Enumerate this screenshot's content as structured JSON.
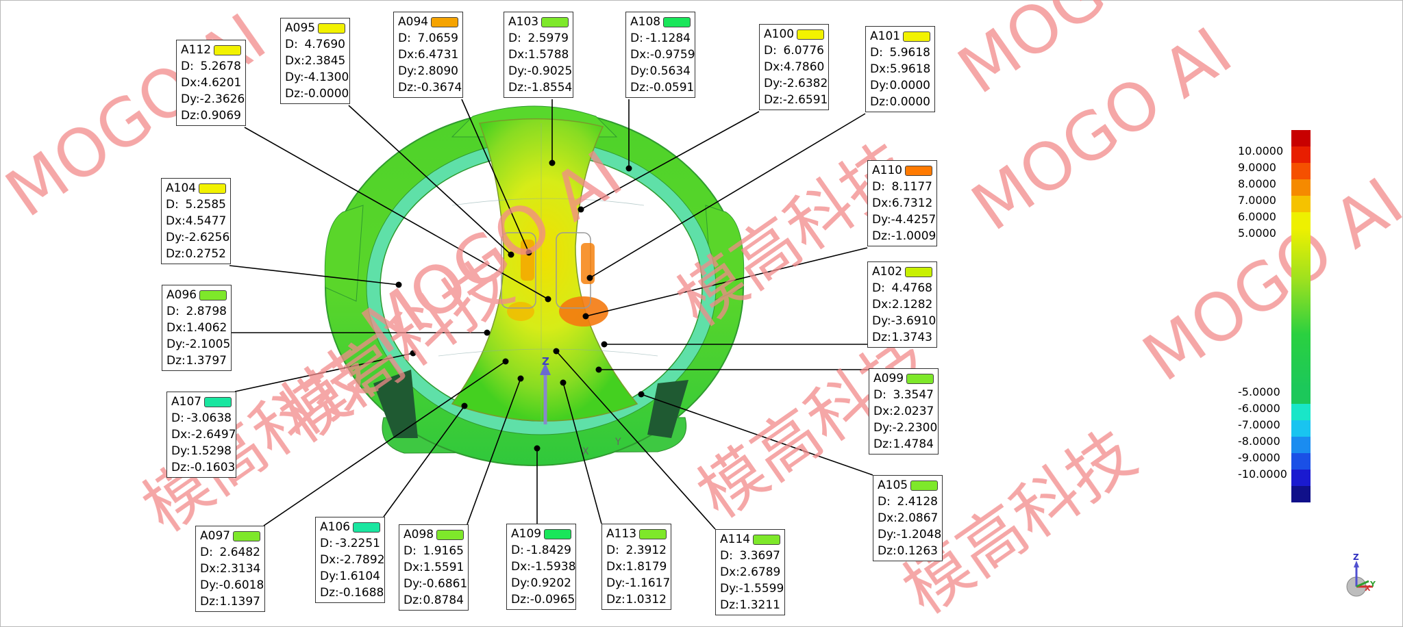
{
  "callouts": [
    {
      "id": "A112",
      "color": "#f2f200",
      "D": "5.2678",
      "Dx": "4.6201",
      "Dy": "-2.3626",
      "Dz": "0.9069"
    },
    {
      "id": "A095",
      "color": "#f2f200",
      "D": "4.7690",
      "Dx": "2.3845",
      "Dy": "-4.1300",
      "Dz": "-0.0000"
    },
    {
      "id": "A094",
      "color": "#f5a300",
      "D": "7.0659",
      "Dx": "6.4731",
      "Dy": "2.8090",
      "Dz": "-0.3674"
    },
    {
      "id": "A103",
      "color": "#7ee82a",
      "D": "2.5979",
      "Dx": "1.5788",
      "Dy": "-0.9025",
      "Dz": "-1.8554"
    },
    {
      "id": "A108",
      "color": "#19e65a",
      "D": "-1.1284",
      "Dx": "-0.9759",
      "Dy": "0.5634",
      "Dz": "-0.0591"
    },
    {
      "id": "A100",
      "color": "#f2f200",
      "D": "6.0776",
      "Dx": "4.7860",
      "Dy": "-2.6382",
      "Dz": "-2.6591"
    },
    {
      "id": "A101",
      "color": "#f2f200",
      "D": "5.9618",
      "Dx": "5.9618",
      "Dy": "0.0000",
      "Dz": "0.0000"
    },
    {
      "id": "A104",
      "color": "#f2f200",
      "D": "5.2585",
      "Dx": "4.5477",
      "Dy": "-2.6256",
      "Dz": "0.2752"
    },
    {
      "id": "A110",
      "color": "#ff7a00",
      "D": "8.1177",
      "Dx": "6.7312",
      "Dy": "-4.4257",
      "Dz": "-1.0009"
    },
    {
      "id": "A096",
      "color": "#7ee82a",
      "D": "2.8798",
      "Dx": "1.4062",
      "Dy": "-2.1005",
      "Dz": "1.3797"
    },
    {
      "id": "A102",
      "color": "#c8f000",
      "D": "4.4768",
      "Dx": "2.1282",
      "Dy": "-3.6910",
      "Dz": "1.3743"
    },
    {
      "id": "A099",
      "color": "#7ee82a",
      "D": "3.3547",
      "Dx": "2.0237",
      "Dy": "-2.2300",
      "Dz": "1.4784"
    },
    {
      "id": "A107",
      "color": "#19e6a0",
      "D": "-3.0638",
      "Dx": "-2.6497",
      "Dy": "1.5298",
      "Dz": "-0.1603"
    },
    {
      "id": "A105",
      "color": "#7ee82a",
      "D": "2.4128",
      "Dx": "2.0867",
      "Dy": "-1.2048",
      "Dz": "0.1263"
    },
    {
      "id": "A097",
      "color": "#7ee82a",
      "D": "2.6482",
      "Dx": "2.3134",
      "Dy": "-0.6018",
      "Dz": "1.1397"
    },
    {
      "id": "A106",
      "color": "#19e6a0",
      "D": "-3.2251",
      "Dx": "-2.7892",
      "Dy": "1.6104",
      "Dz": "-0.1688"
    },
    {
      "id": "A098",
      "color": "#7ee82a",
      "D": "1.9165",
      "Dx": "1.5591",
      "Dy": "-0.6861",
      "Dz": "0.8784"
    },
    {
      "id": "A109",
      "color": "#19e65a",
      "D": "-1.8429",
      "Dx": "-1.5938",
      "Dy": "0.9202",
      "Dz": "-0.0965"
    },
    {
      "id": "A113",
      "color": "#7ee82a",
      "D": "2.3912",
      "Dx": "1.8179",
      "Dy": "-1.1617",
      "Dz": "1.0312"
    },
    {
      "id": "A114",
      "color": "#7ee82a",
      "D": "3.3697",
      "Dx": "2.6789",
      "Dy": "-1.5599",
      "Dz": "1.3211"
    }
  ],
  "row_labels": {
    "D": "D:",
    "Dx": "Dx:",
    "Dy": "Dy:",
    "Dz": "Dz:"
  },
  "legend": {
    "labels": [
      "10.0000",
      "9.0000",
      "8.0000",
      "7.0000",
      "6.0000",
      "5.0000",
      "-5.0000",
      "-6.0000",
      "-7.0000",
      "-8.0000",
      "-9.0000",
      "-10.0000"
    ],
    "colors": [
      "#c80000",
      "#e81e00",
      "#f55000",
      "#f58a00",
      "#f5c200",
      "#eef000",
      "#1cc85a",
      "#19e6c8",
      "#19c4f0",
      "#1a8cf0",
      "#1a50e6",
      "#1a1ad0",
      "#10108a"
    ]
  },
  "axes": {
    "z": "Z",
    "x": "X",
    "y": "Y"
  },
  "watermark": {
    "text_cn": "模高科技",
    "text_en": "MOGO AI"
  }
}
